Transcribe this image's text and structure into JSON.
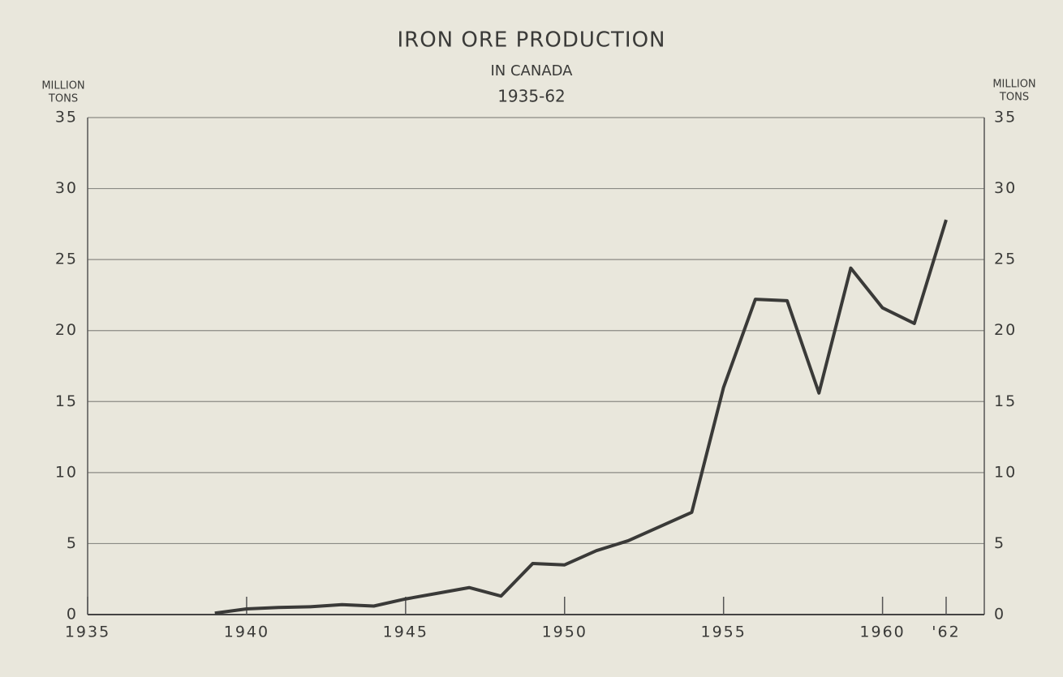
{
  "chart_data": {
    "type": "line",
    "title": "IRON ORE PRODUCTION",
    "subtitle": [
      "IN CANADA",
      "1935-62"
    ],
    "y_label": [
      "MILLION",
      "TONS"
    ],
    "y2_label": [
      "MILLION",
      "TONS"
    ],
    "x": [
      1939,
      1940,
      1941,
      1942,
      1943,
      1944,
      1945,
      1946,
      1947,
      1948,
      1949,
      1950,
      1951,
      1952,
      1953,
      1954,
      1955,
      1956,
      1957,
      1958,
      1959,
      1960,
      1961,
      1962
    ],
    "series": [
      {
        "name": "Iron ore production",
        "color": "#3a3a38",
        "values": [
          0.1,
          0.4,
          0.5,
          0.55,
          0.7,
          0.6,
          1.1,
          1.5,
          1.9,
          1.3,
          3.6,
          3.5,
          4.5,
          5.2,
          6.2,
          7.2,
          16.0,
          22.2,
          22.1,
          15.6,
          24.4,
          21.6,
          20.5,
          27.8
        ]
      }
    ],
    "xlim": [
      1935,
      1963.2
    ],
    "xticks": [
      1935,
      1940,
      1945,
      1950,
      1955,
      1960,
      {
        "value": 1962,
        "label": "'62"
      }
    ],
    "ylim": [
      0,
      35
    ],
    "yticks": [
      0,
      5,
      10,
      15,
      20,
      25,
      30,
      35
    ],
    "y2lim": [
      0,
      35
    ],
    "y2ticks": [
      0,
      5,
      10,
      15,
      20,
      25,
      30,
      35
    ],
    "grid": true
  }
}
